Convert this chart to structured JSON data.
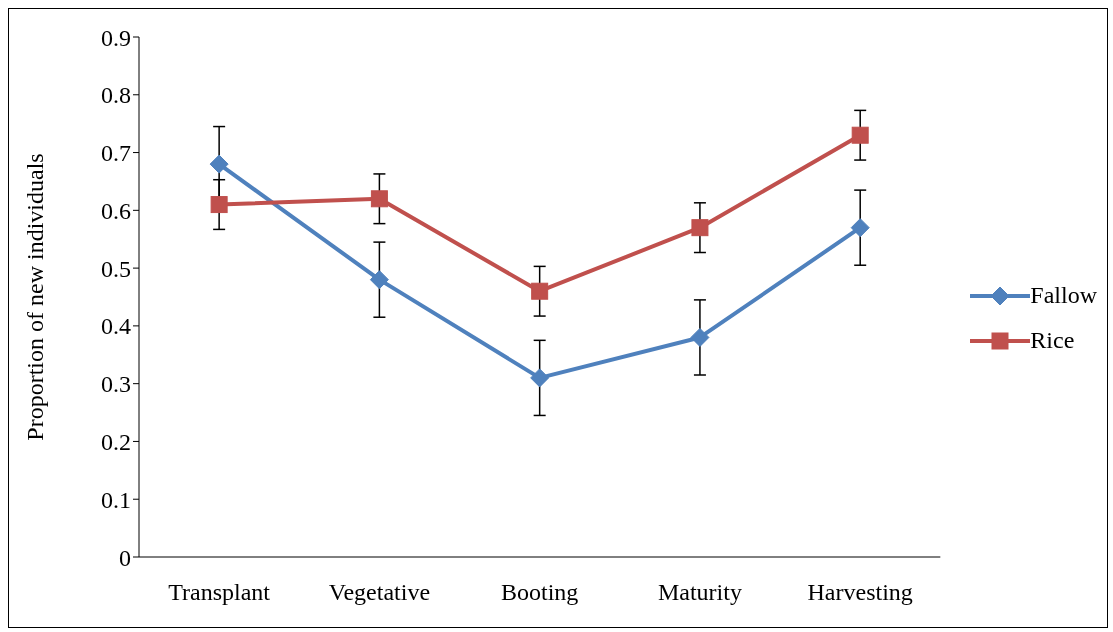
{
  "chart_data": {
    "type": "line",
    "ylabel": "Proportion of new individuals",
    "categories": [
      "Transplant",
      "Vegetative",
      "Booting",
      "Maturity",
      "Harvesting"
    ],
    "series": [
      {
        "name": "Fallow",
        "color": "#4f81bd",
        "marker": "diamond",
        "values": [
          0.68,
          0.48,
          0.31,
          0.38,
          0.57
        ],
        "errors": [
          0.065,
          0.065,
          0.065,
          0.065,
          0.065
        ]
      },
      {
        "name": "Rice",
        "color": "#c0504d",
        "marker": "square",
        "values": [
          0.61,
          0.62,
          0.46,
          0.57,
          0.73
        ],
        "errors": [
          0.043,
          0.043,
          0.043,
          0.043,
          0.043
        ]
      }
    ],
    "ylim": [
      0,
      0.9
    ],
    "yticks": [
      0,
      0.1,
      0.2,
      0.3,
      0.4,
      0.5,
      0.6,
      0.7,
      0.8,
      0.9
    ],
    "grid": false,
    "legend": "right",
    "line_style": "solid"
  }
}
